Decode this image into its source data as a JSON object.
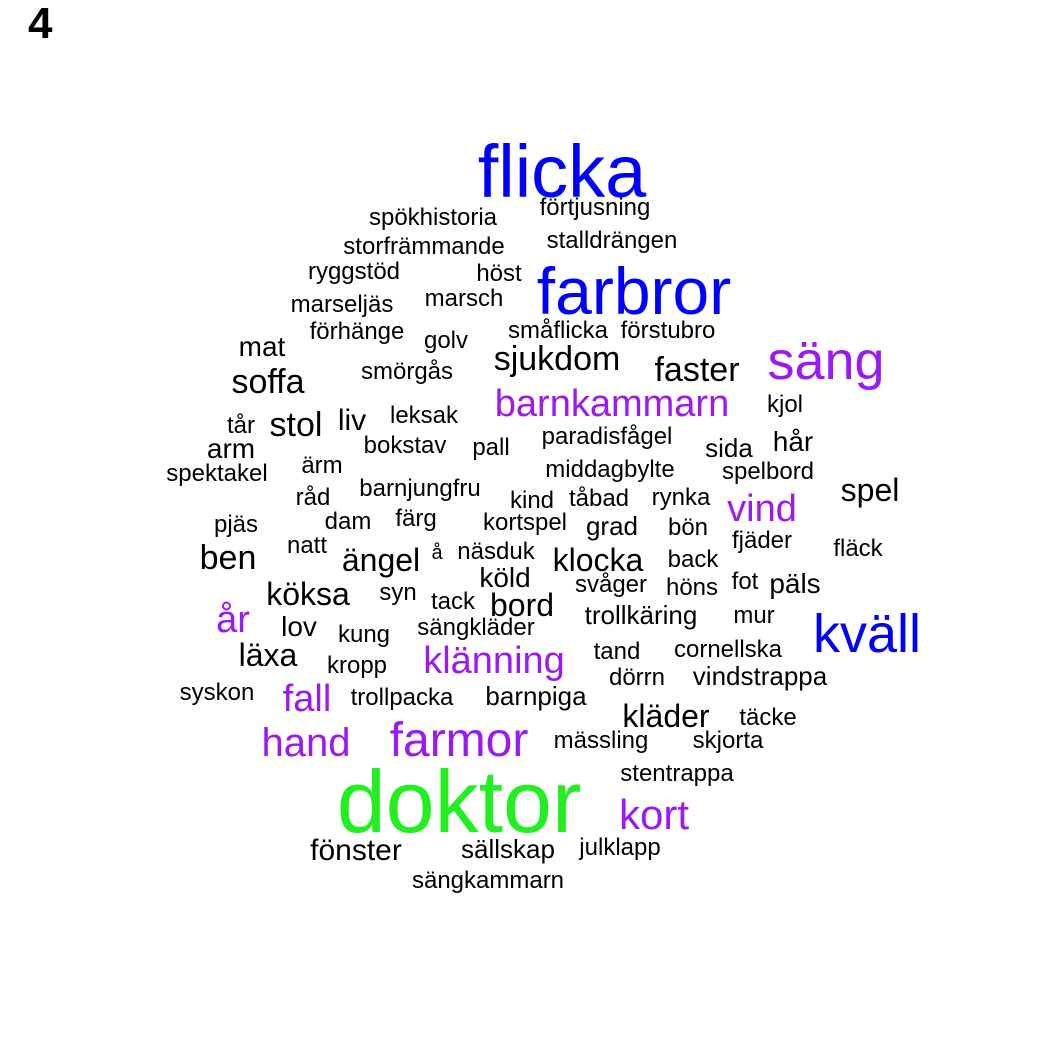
{
  "panel_label": "4",
  "colors": {
    "black": "#000000",
    "purple": "#9b19f5",
    "blue": "#0000ff",
    "green": "#22ee22"
  },
  "words": [
    {
      "text": "flicka",
      "color": "blue"
    },
    {
      "text": "förtjusning",
      "color": "black"
    },
    {
      "text": "spökhistoria",
      "color": "black"
    },
    {
      "text": "storfrämmande",
      "color": "black"
    },
    {
      "text": "stalldrängen",
      "color": "black"
    },
    {
      "text": "ryggstöd",
      "color": "black"
    },
    {
      "text": "höst",
      "color": "black"
    },
    {
      "text": "farbror",
      "color": "blue"
    },
    {
      "text": "marseljäs",
      "color": "black"
    },
    {
      "text": "marsch",
      "color": "black"
    },
    {
      "text": "förhänge",
      "color": "black"
    },
    {
      "text": "småflicka",
      "color": "black"
    },
    {
      "text": "förstubro",
      "color": "black"
    },
    {
      "text": "mat",
      "color": "black"
    },
    {
      "text": "golv",
      "color": "black"
    },
    {
      "text": "sjukdom",
      "color": "black"
    },
    {
      "text": "säng",
      "color": "purple"
    },
    {
      "text": "smörgås",
      "color": "black"
    },
    {
      "text": "faster",
      "color": "black"
    },
    {
      "text": "soffa",
      "color": "black"
    },
    {
      "text": "barnkammarn",
      "color": "purple"
    },
    {
      "text": "kjol",
      "color": "black"
    },
    {
      "text": "tår",
      "color": "black"
    },
    {
      "text": "stol",
      "color": "black"
    },
    {
      "text": "liv",
      "color": "black"
    },
    {
      "text": "leksak",
      "color": "black"
    },
    {
      "text": "arm",
      "color": "black"
    },
    {
      "text": "bokstav",
      "color": "black"
    },
    {
      "text": "paradisfågel",
      "color": "black"
    },
    {
      "text": "pall",
      "color": "black"
    },
    {
      "text": "sida",
      "color": "black"
    },
    {
      "text": "hår",
      "color": "black"
    },
    {
      "text": "spektakel",
      "color": "black"
    },
    {
      "text": "ärm",
      "color": "black"
    },
    {
      "text": "middagbylte",
      "color": "black"
    },
    {
      "text": "spelbord",
      "color": "black"
    },
    {
      "text": "råd",
      "color": "black"
    },
    {
      "text": "barnjungfru",
      "color": "black"
    },
    {
      "text": "kind",
      "color": "black"
    },
    {
      "text": "tåbad",
      "color": "black"
    },
    {
      "text": "rynka",
      "color": "black"
    },
    {
      "text": "spel",
      "color": "black"
    },
    {
      "text": "vind",
      "color": "purple"
    },
    {
      "text": "pjäs",
      "color": "black"
    },
    {
      "text": "dam",
      "color": "black"
    },
    {
      "text": "färg",
      "color": "black"
    },
    {
      "text": "kortspel",
      "color": "black"
    },
    {
      "text": "grad",
      "color": "black"
    },
    {
      "text": "bön",
      "color": "black"
    },
    {
      "text": "natt",
      "color": "black"
    },
    {
      "text": "fjäder",
      "color": "black"
    },
    {
      "text": "fläck",
      "color": "black"
    },
    {
      "text": "ben",
      "color": "black"
    },
    {
      "text": "ängel",
      "color": "black"
    },
    {
      "text": "å",
      "color": "black"
    },
    {
      "text": "näsduk",
      "color": "black"
    },
    {
      "text": "klocka",
      "color": "black"
    },
    {
      "text": "back",
      "color": "black"
    },
    {
      "text": "köld",
      "color": "black"
    },
    {
      "text": "svåger",
      "color": "black"
    },
    {
      "text": "höns",
      "color": "black"
    },
    {
      "text": "fot",
      "color": "black"
    },
    {
      "text": "päls",
      "color": "black"
    },
    {
      "text": "köksa",
      "color": "black"
    },
    {
      "text": "syn",
      "color": "black"
    },
    {
      "text": "tack",
      "color": "black"
    },
    {
      "text": "bord",
      "color": "black"
    },
    {
      "text": "år",
      "color": "purple"
    },
    {
      "text": "trollkäring",
      "color": "black"
    },
    {
      "text": "mur",
      "color": "black"
    },
    {
      "text": "kväll",
      "color": "blue"
    },
    {
      "text": "lov",
      "color": "black"
    },
    {
      "text": "kung",
      "color": "black"
    },
    {
      "text": "sängkläder",
      "color": "black"
    },
    {
      "text": "läxa",
      "color": "black"
    },
    {
      "text": "tand",
      "color": "black"
    },
    {
      "text": "cornellska",
      "color": "black"
    },
    {
      "text": "kropp",
      "color": "black"
    },
    {
      "text": "klänning",
      "color": "purple"
    },
    {
      "text": "dörrn",
      "color": "black"
    },
    {
      "text": "vindstrappa",
      "color": "black"
    },
    {
      "text": "syskon",
      "color": "black"
    },
    {
      "text": "fall",
      "color": "purple"
    },
    {
      "text": "trollpacka",
      "color": "black"
    },
    {
      "text": "barnpiga",
      "color": "black"
    },
    {
      "text": "kläder",
      "color": "black"
    },
    {
      "text": "täcke",
      "color": "black"
    },
    {
      "text": "hand",
      "color": "purple"
    },
    {
      "text": "farmor",
      "color": "purple"
    },
    {
      "text": "mässling",
      "color": "black"
    },
    {
      "text": "skjorta",
      "color": "black"
    },
    {
      "text": "stentrappa",
      "color": "black"
    },
    {
      "text": "doktor",
      "color": "green"
    },
    {
      "text": "kort",
      "color": "purple"
    },
    {
      "text": "fönster",
      "color": "black"
    },
    {
      "text": "sällskap",
      "color": "black"
    },
    {
      "text": "julklapp",
      "color": "black"
    },
    {
      "text": "sängkammarn",
      "color": "black"
    }
  ]
}
